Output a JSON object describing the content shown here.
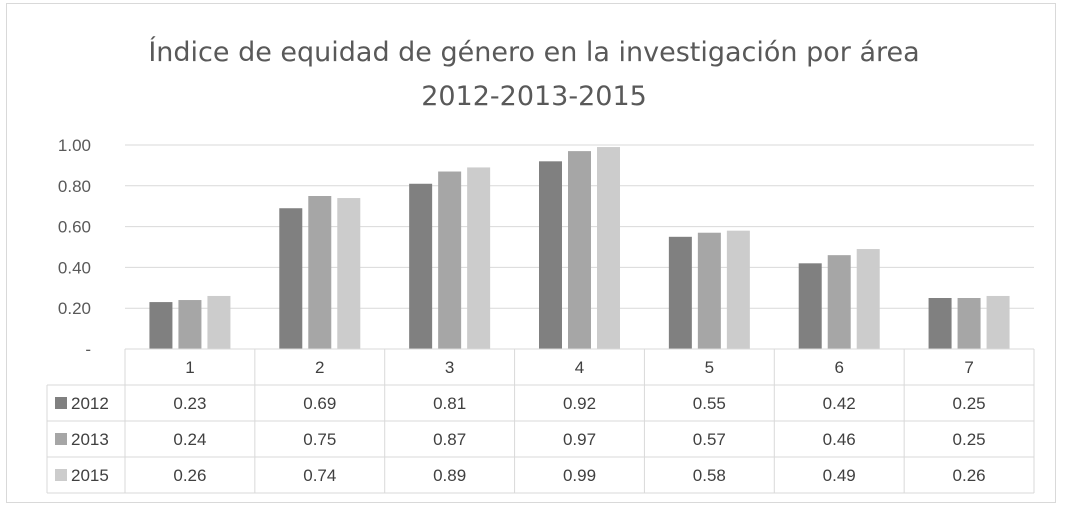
{
  "chart_data": {
    "type": "bar",
    "title": [
      "Índice de equidad de género en la investigación por área",
      "2012-2013-2015"
    ],
    "categories": [
      "1",
      "2",
      "3",
      "4",
      "5",
      "6",
      "7"
    ],
    "series": [
      {
        "name": "2012",
        "color": "#808080",
        "values": [
          0.23,
          0.69,
          0.81,
          0.92,
          0.55,
          0.42,
          0.25
        ],
        "labels": [
          "0.23",
          "0.69",
          "0.81",
          "0.92",
          "0.55",
          "0.42",
          "0.25"
        ]
      },
      {
        "name": "2013",
        "color": "#a6a6a6",
        "values": [
          0.24,
          0.75,
          0.87,
          0.97,
          0.57,
          0.46,
          0.25
        ],
        "labels": [
          "0.24",
          "0.75",
          "0.87",
          "0.97",
          "0.57",
          "0.46",
          "0.25"
        ]
      },
      {
        "name": "2015",
        "color": "#cccccc",
        "values": [
          0.26,
          0.74,
          0.89,
          0.99,
          0.58,
          0.49,
          0.26
        ],
        "labels": [
          "0.26",
          "0.74",
          "0.89",
          "0.99",
          "0.58",
          "0.49",
          "0.26"
        ]
      }
    ],
    "ylim": [
      0,
      1
    ],
    "yticks": [
      0,
      0.2,
      0.4,
      0.6,
      0.8,
      1.0
    ],
    "ytick_labels": [
      "-",
      "0.20",
      "0.40",
      "0.60",
      "0.80",
      "1.00"
    ],
    "grid": true,
    "legend": "data-table"
  }
}
